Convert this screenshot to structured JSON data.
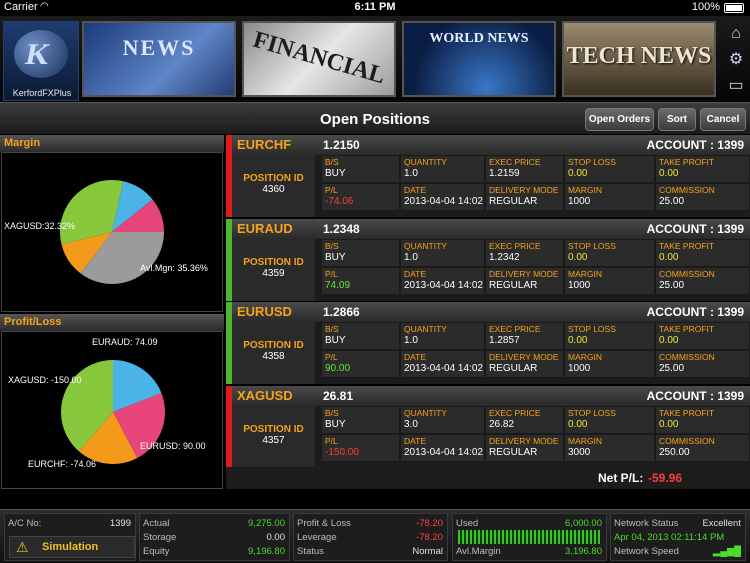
{
  "status_bar": {
    "carrier": "Carrier",
    "wifi_icon": "wifi-icon",
    "time": "6:11 PM",
    "battery": "100%"
  },
  "banner": {
    "logo_text": "KerfordFXPlus",
    "logo_mark": "K",
    "tiles": [
      "NEWS",
      "FINANCIAL",
      "WORLD NEWS",
      "TECH NEWS"
    ],
    "side_icons": [
      "home-icon",
      "gear-icon",
      "chat-icon"
    ]
  },
  "titlebar": {
    "title": "Open Positions",
    "open_orders": "Open Orders",
    "sort": "Sort",
    "cancel": "Cancel"
  },
  "margin_panel": {
    "title": "Margin",
    "labels": {
      "xagusd": "XAGUSD:32.32%",
      "avl": "Avl.Mgn: 35.36%"
    }
  },
  "pl_panel": {
    "title": "Profit/Loss",
    "labels": {
      "euraud": "EURAUD: 74.09",
      "xagusd": "XAGUSD: -150.00",
      "eurusd": "EURUSD: 90.00",
      "eurchf": "EURCHF: -74.06"
    }
  },
  "chart_data": [
    {
      "type": "pie",
      "title": "Margin",
      "slices": [
        {
          "label": "Avl.Mgn",
          "value": 35.36,
          "color": "#9b9b9b"
        },
        {
          "label": "",
          "value": 10.8,
          "color": "#f39a1a"
        },
        {
          "label": "XAGUSD",
          "value": 32.32,
          "color": "#86c73c"
        },
        {
          "label": "",
          "value": 10.76,
          "color": "#4ab4e6"
        },
        {
          "label": "",
          "value": 10.76,
          "color": "#e8457a"
        }
      ]
    },
    {
      "type": "pie",
      "title": "Profit/Loss",
      "slices": [
        {
          "label": "EURAUD",
          "value": 74.09,
          "color": "#4ab4e6"
        },
        {
          "label": "EURUSD",
          "value": 90.0,
          "color": "#e8457a"
        },
        {
          "label": "EURCHF",
          "value": -74.06,
          "color": "#f39a1a"
        },
        {
          "label": "XAGUSD",
          "value": -150.0,
          "color": "#86c73c"
        }
      ]
    }
  ],
  "labels": {
    "bs": "B/S",
    "quantity": "QUANTITY",
    "exec_price": "EXEC PRICE",
    "stop_loss": "STOP LOSS",
    "take_profit": "TAKE PROFIT",
    "pl": "P/L",
    "date": "DATE",
    "delivery_mode": "DELIVERY MODE",
    "margin": "MARGIN",
    "commission": "COMMISSION",
    "position_id": "POSITION ID"
  },
  "positions": [
    {
      "symbol": "EURCHF",
      "price": "1.2150",
      "account": "ACCOUNT : 1399",
      "position_id": "4360",
      "bs": "BUY",
      "quantity": "1.0",
      "exec_price": "1.2159",
      "stop_loss": "0.00",
      "take_profit": "0.00",
      "pl": "-74.06",
      "date": "2013-04-04 14:02",
      "delivery_mode": "REGULAR",
      "margin": "1000",
      "commission": "25.00",
      "strip_color": "#e01b1b"
    },
    {
      "symbol": "EURAUD",
      "price": "1.2348",
      "account": "ACCOUNT : 1399",
      "position_id": "4359",
      "bs": "BUY",
      "quantity": "1.0",
      "exec_price": "1.2342",
      "stop_loss": "0.00",
      "take_profit": "0.00",
      "pl": "74.09",
      "date": "2013-04-04 14:02",
      "delivery_mode": "REGULAR",
      "margin": "1000",
      "commission": "25.00",
      "strip_color": "#4fb82a"
    },
    {
      "symbol": "EURUSD",
      "price": "1.2866",
      "account": "ACCOUNT : 1399",
      "position_id": "4358",
      "bs": "BUY",
      "quantity": "1.0",
      "exec_price": "1.2857",
      "stop_loss": "0.00",
      "take_profit": "0.00",
      "pl": "90.00",
      "date": "2013-04-04 14:02",
      "delivery_mode": "REGULAR",
      "margin": "1000",
      "commission": "25.00",
      "strip_color": "#4fb82a"
    },
    {
      "symbol": "XAGUSD",
      "price": "26.81",
      "account": "ACCOUNT : 1399",
      "position_id": "4357",
      "bs": "BUY",
      "quantity": "3.0",
      "exec_price": "26.82",
      "stop_loss": "0.00",
      "take_profit": "0.00",
      "pl": "-150.00",
      "date": "2013-04-04 14:02",
      "delivery_mode": "REGULAR",
      "margin": "3000",
      "commission": "250.00",
      "strip_color": "#e01b1b"
    }
  ],
  "net_pl": {
    "label": "Net P/L:",
    "value": "-59.96"
  },
  "bottom": {
    "ac_no_label": "A/C No:",
    "ac_no": "1399",
    "simulation": "Simulation",
    "actual_label": "Actual",
    "actual": "9,275.00",
    "storage_label": "Storage",
    "storage": "0.00",
    "equity_label": "Equity",
    "equity": "9,196.80",
    "pl_label": "Profit & Loss",
    "pl": "-78.20",
    "leverage_label": "Leverage",
    "leverage": "-78.20",
    "status_label": "Status",
    "status": "Normal",
    "used_label": "Used",
    "used": "6,000.00",
    "avl_label": "Avl.Margin",
    "avl": "3,196.80",
    "net_status_label": "Network Status",
    "net_status": "Excellent",
    "datetime": "Apr 04, 2013 02:11:14 PM",
    "net_speed_label": "Network Speed"
  }
}
